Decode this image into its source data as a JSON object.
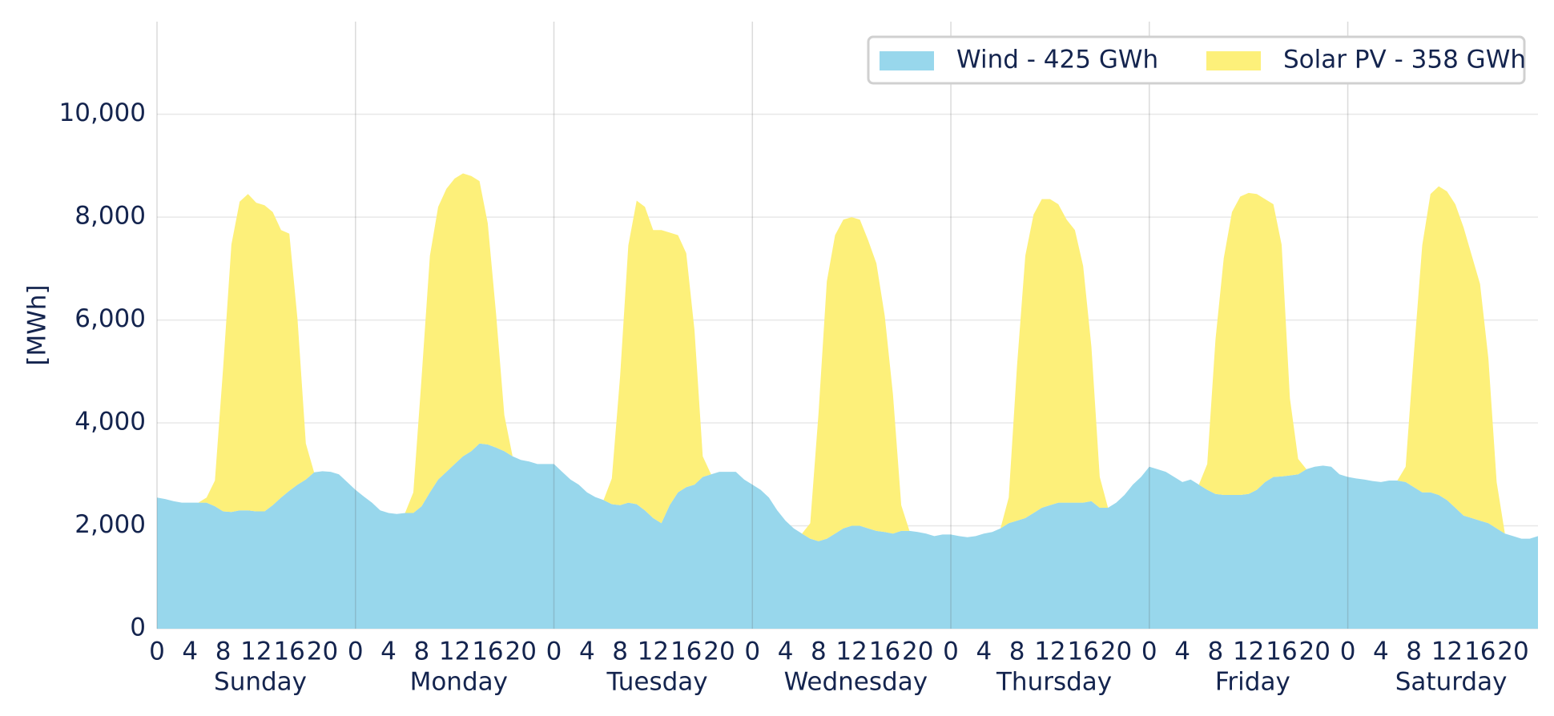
{
  "chart_data": {
    "type": "stacked-area",
    "ylabel": "[MWh]",
    "x": [
      0,
      1,
      2,
      3,
      4,
      5,
      6,
      7,
      8,
      9,
      10,
      11,
      12,
      13,
      14,
      15,
      16,
      17,
      18,
      19,
      20,
      21,
      22,
      23,
      24,
      25,
      26,
      27,
      28,
      29,
      30,
      31,
      32,
      33,
      34,
      35,
      36,
      37,
      38,
      39,
      40,
      41,
      42,
      43,
      44,
      45,
      46,
      47,
      48,
      49,
      50,
      51,
      52,
      53,
      54,
      55,
      56,
      57,
      58,
      59,
      60,
      61,
      62,
      63,
      64,
      65,
      66,
      67,
      68,
      69,
      70,
      71,
      72,
      73,
      74,
      75,
      76,
      77,
      78,
      79,
      80,
      81,
      82,
      83,
      84,
      85,
      86,
      87,
      88,
      89,
      90,
      91,
      92,
      93,
      94,
      95,
      96,
      97,
      98,
      99,
      100,
      101,
      102,
      103,
      104,
      105,
      106,
      107,
      108,
      109,
      110,
      111,
      112,
      113,
      114,
      115,
      116,
      117,
      118,
      119,
      120,
      121,
      122,
      123,
      124,
      125,
      126,
      127,
      128,
      129,
      130,
      131,
      132,
      133,
      134,
      135,
      136,
      137,
      138,
      139,
      140,
      141,
      142,
      143,
      144,
      145,
      146,
      147,
      148,
      149,
      150,
      151,
      152,
      153,
      154,
      155,
      156,
      157,
      158,
      159,
      160,
      161,
      162,
      163,
      164,
      165,
      166,
      167
    ],
    "days": [
      "Sunday",
      "Monday",
      "Tuesday",
      "Wednesday",
      "Thursday",
      "Friday",
      "Saturday"
    ],
    "series": [
      {
        "name": "Wind - 425 GWh",
        "color": "#98d7ec",
        "values": [
          2550,
          2520,
          2480,
          2450,
          2450,
          2450,
          2450,
          2380,
          2280,
          2270,
          2300,
          2300,
          2280,
          2280,
          2400,
          2550,
          2680,
          2800,
          2900,
          3040,
          3060,
          3050,
          3000,
          2850,
          2700,
          2570,
          2450,
          2300,
          2250,
          2230,
          2250,
          2250,
          2380,
          2650,
          2900,
          3050,
          3200,
          3350,
          3450,
          3600,
          3580,
          3520,
          3450,
          3350,
          3280,
          3250,
          3200,
          3200,
          3200,
          3050,
          2900,
          2800,
          2650,
          2560,
          2500,
          2420,
          2400,
          2450,
          2420,
          2300,
          2150,
          2050,
          2400,
          2650,
          2750,
          2800,
          2950,
          3000,
          3050,
          3050,
          3050,
          2900,
          2800,
          2700,
          2550,
          2300,
          2100,
          1950,
          1850,
          1750,
          1700,
          1750,
          1850,
          1950,
          2000,
          2000,
          1950,
          1900,
          1880,
          1850,
          1900,
          1900,
          1880,
          1850,
          1800,
          1830,
          1830,
          1800,
          1780,
          1800,
          1850,
          1880,
          1950,
          2050,
          2100,
          2150,
          2250,
          2350,
          2400,
          2450,
          2450,
          2450,
          2450,
          2480,
          2350,
          2350,
          2450,
          2600,
          2800,
          2950,
          3150,
          3100,
          3050,
          2950,
          2850,
          2900,
          2800,
          2700,
          2620,
          2600,
          2600,
          2600,
          2620,
          2700,
          2850,
          2950,
          2960,
          2980,
          3000,
          3100,
          3150,
          3170,
          3150,
          3000,
          2950,
          2920,
          2900,
          2870,
          2850,
          2880,
          2880,
          2850,
          2750,
          2650,
          2650,
          2600,
          2500,
          2350,
          2200,
          2150,
          2100,
          2050,
          1950,
          1850,
          1800,
          1750,
          1750,
          1800
        ]
      },
      {
        "name": "Solar PV - 358 GWh",
        "color": "#fdf07a",
        "values": [
          0,
          0,
          0,
          0,
          0,
          0,
          100,
          500,
          2800,
          5200,
          6000,
          6150,
          6000,
          5950,
          5700,
          5200,
          5000,
          3200,
          700,
          0,
          0,
          0,
          0,
          0,
          0,
          0,
          0,
          0,
          0,
          0,
          0,
          400,
          2500,
          4600,
          5300,
          5500,
          5550,
          5500,
          5350,
          5100,
          4300,
          2600,
          700,
          0,
          0,
          0,
          0,
          0,
          0,
          0,
          0,
          0,
          0,
          0,
          0,
          500,
          2500,
          5000,
          5900,
          5900,
          5600,
          5700,
          5300,
          5000,
          4550,
          3000,
          400,
          0,
          0,
          0,
          0,
          0,
          0,
          0,
          0,
          0,
          0,
          0,
          0,
          300,
          2500,
          5000,
          5800,
          6000,
          6000,
          5950,
          5600,
          5200,
          4200,
          2700,
          500,
          0,
          0,
          0,
          0,
          0,
          0,
          0,
          0,
          0,
          0,
          0,
          0,
          500,
          3000,
          5100,
          5800,
          6000,
          5950,
          5800,
          5500,
          5300,
          4600,
          3000,
          600,
          0,
          0,
          0,
          0,
          0,
          0,
          0,
          0,
          0,
          0,
          0,
          0,
          500,
          3000,
          4600,
          5500,
          5800,
          5850,
          5750,
          5500,
          5300,
          4500,
          1500,
          300,
          0,
          0,
          0,
          0,
          0,
          0,
          0,
          0,
          0,
          0,
          0,
          0,
          300,
          2600,
          4800,
          5800,
          6000,
          6000,
          5900,
          5600,
          5100,
          4600,
          3200,
          900,
          0,
          0,
          0,
          0,
          0
        ]
      }
    ],
    "xlim": [
      0,
      167
    ],
    "xticks": [
      0,
      4,
      8,
      12,
      16,
      20,
      {
        "value": 24,
        "label": "0"
      },
      {
        "value": 28,
        "label": "4"
      },
      {
        "value": 32,
        "label": "8"
      },
      {
        "value": 36,
        "label": "12"
      },
      {
        "value": 40,
        "label": "16"
      },
      {
        "value": 44,
        "label": "20"
      },
      {
        "value": 48,
        "label": "0"
      },
      {
        "value": 52,
        "label": "4"
      },
      {
        "value": 56,
        "label": "8"
      },
      {
        "value": 60,
        "label": "12"
      },
      {
        "value": 64,
        "label": "16"
      },
      {
        "value": 68,
        "label": "20"
      },
      {
        "value": 72,
        "label": "0"
      },
      {
        "value": 76,
        "label": "4"
      },
      {
        "value": 80,
        "label": "8"
      },
      {
        "value": 84,
        "label": "12"
      },
      {
        "value": 88,
        "label": "16"
      },
      {
        "value": 92,
        "label": "20"
      },
      {
        "value": 96,
        "label": "0"
      },
      {
        "value": 100,
        "label": "4"
      },
      {
        "value": 104,
        "label": "8"
      },
      {
        "value": 108,
        "label": "12"
      },
      {
        "value": 112,
        "label": "16"
      },
      {
        "value": 116,
        "label": "20"
      },
      {
        "value": 120,
        "label": "0"
      },
      {
        "value": 124,
        "label": "4"
      },
      {
        "value": 128,
        "label": "8"
      },
      {
        "value": 132,
        "label": "12"
      },
      {
        "value": 136,
        "label": "16"
      },
      {
        "value": 140,
        "label": "20"
      },
      {
        "value": 144,
        "label": "0"
      },
      {
        "value": 148,
        "label": "4"
      },
      {
        "value": 152,
        "label": "8"
      },
      {
        "value": 156,
        "label": "12"
      },
      {
        "value": 160,
        "label": "16"
      },
      {
        "value": 164,
        "label": "20"
      }
    ],
    "ylim": [
      0,
      11800
    ],
    "yticks": [
      0,
      {
        "value": 2000,
        "label": "2,000"
      },
      {
        "value": 4000,
        "label": "4,000"
      },
      {
        "value": 6000,
        "label": "6,000"
      },
      {
        "value": 8000,
        "label": "8,000"
      },
      {
        "value": 10000,
        "label": "10,000"
      }
    ],
    "grid": true,
    "legend": "upper-right"
  }
}
